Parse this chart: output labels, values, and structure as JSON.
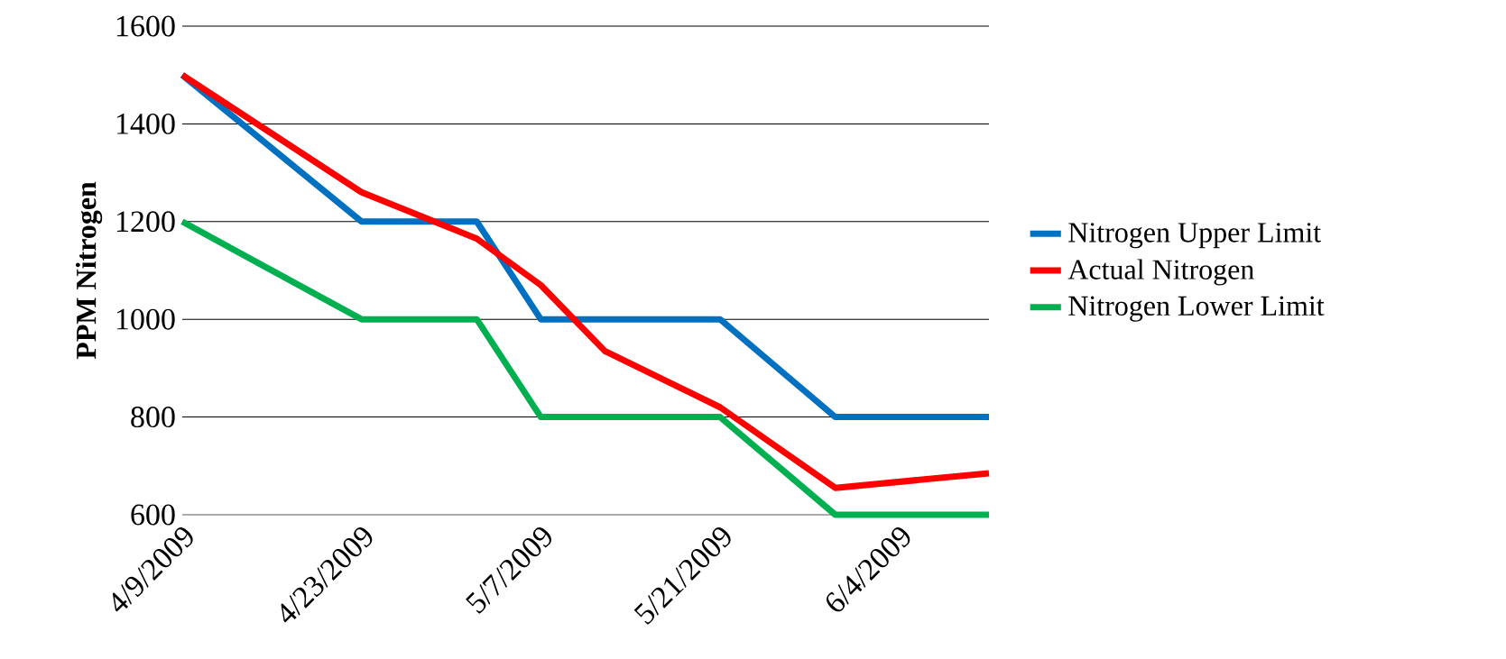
{
  "chart_data": {
    "type": "line",
    "ylabel": "PPM Nitrogen",
    "xlim": [
      "2009-04-09",
      "2009-06-11"
    ],
    "xticks": [
      {
        "value": "2009-04-09",
        "label": "4/9/2009"
      },
      {
        "value": "2009-04-23",
        "label": "4/23/2009"
      },
      {
        "value": "2009-05-07",
        "label": "5/7/2009"
      },
      {
        "value": "2009-05-21",
        "label": "5/21/2009"
      },
      {
        "value": "2009-06-04",
        "label": "6/4/2009"
      }
    ],
    "ylim": [
      600,
      1600
    ],
    "yticks": [
      600,
      800,
      1000,
      1200,
      1400,
      1600
    ],
    "grid": "y",
    "legend": "right",
    "marker": "none",
    "line_style": "solid",
    "series": [
      {
        "name": "Nitrogen Upper Limit",
        "color": "#0070c0",
        "x": [
          "2009-04-09",
          "2009-04-23",
          "2009-05-02",
          "2009-05-07",
          "2009-05-21",
          "2009-05-30",
          "2009-06-11"
        ],
        "values": [
          1500,
          1200,
          1200,
          1000,
          1000,
          800,
          800
        ]
      },
      {
        "name": "Actual Nitrogen",
        "color": "#ff0000",
        "x": [
          "2009-04-09",
          "2009-04-23",
          "2009-05-02",
          "2009-05-07",
          "2009-05-12",
          "2009-05-21",
          "2009-05-30",
          "2009-06-11"
        ],
        "values": [
          1500,
          1260,
          1165,
          1070,
          935,
          820,
          655,
          685
        ]
      },
      {
        "name": "Nitrogen Lower Limit",
        "color": "#00b050",
        "x": [
          "2009-04-09",
          "2009-04-23",
          "2009-05-02",
          "2009-05-07",
          "2009-05-21",
          "2009-05-30",
          "2009-06-11"
        ],
        "values": [
          1200,
          1000,
          1000,
          800,
          800,
          600,
          600
        ]
      }
    ]
  }
}
